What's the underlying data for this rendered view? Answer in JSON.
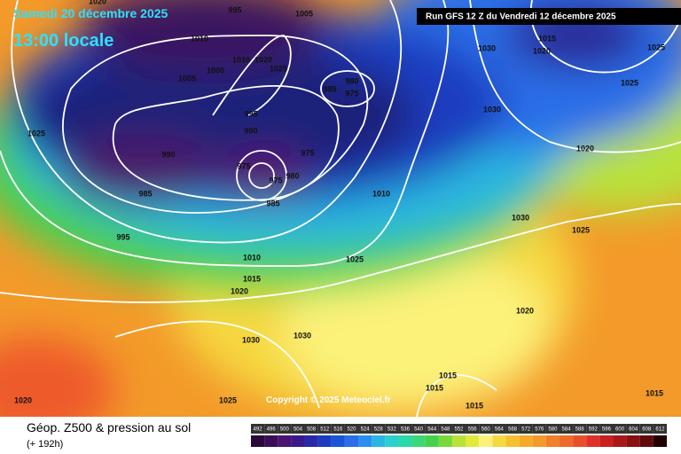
{
  "header": {
    "date": "Samedi 20 décembre 2025",
    "time": "13:00 locale",
    "run": "Run GFS 12 Z du Vendredi 12 décembre 2025"
  },
  "copyright": "Copyright © 2025 Meteociel.fr",
  "footer": {
    "title": "Géop. Z500 & pression au sol",
    "lead": "(+ 192h)"
  },
  "isobar_labels": [
    1020,
    995,
    1005,
    1010,
    1000,
    1010,
    1020,
    1025,
    1005,
    985,
    980,
    975,
    995,
    990,
    1025,
    990,
    975,
    975,
    980,
    975,
    985,
    985,
    995,
    1010,
    1025,
    1010,
    1015,
    1020,
    1030,
    1030,
    1030,
    1030,
    1015,
    1020,
    1025,
    1025,
    1020,
    1030,
    1025,
    1020,
    1015,
    1015,
    1015,
    1015,
    1025,
    1020
  ],
  "legend": {
    "values": [
      492,
      496,
      500,
      504,
      508,
      512,
      516,
      520,
      524,
      528,
      532,
      536,
      540,
      544,
      548,
      552,
      556,
      560,
      564,
      568,
      572,
      576,
      580,
      584,
      588,
      592,
      596,
      600,
      604,
      608,
      612
    ]
  }
}
